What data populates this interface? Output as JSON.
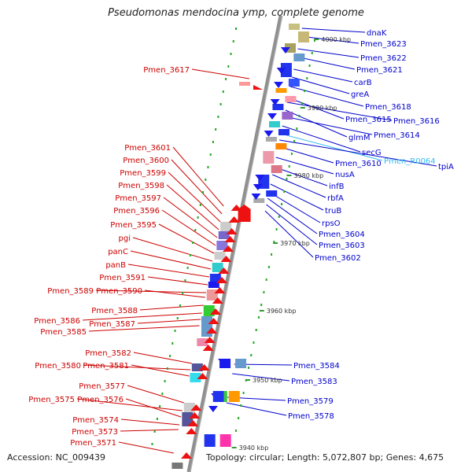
{
  "title": "Pseudomonas mendocina ymp, complete genome",
  "footer": {
    "accession": "Accession: NC_009439",
    "topology": "Topology: circular; Length: 5,072,807 bp; Genes: 4,675"
  },
  "colors": {
    "right_label": "#0000cc",
    "left_label": "#cc0000",
    "rna_label": "#33bbee",
    "backbone": "#909090",
    "scale_dot": "#22aa22"
  },
  "scale_ticks": [
    "4000 kbp",
    "3990 kbp",
    "3980 kbp",
    "3970 kbp",
    "3960 kbp",
    "3950 kbp",
    "3940 kbp"
  ],
  "right_labels": [
    "dnaK",
    "Pmen_3623",
    "Pmen_3622",
    "Pmen_3621",
    "carB",
    "greA",
    "Pmen_3618",
    "Pmen_3615",
    "Pmen_3616",
    "glmM",
    "Pmen_3614",
    "secG",
    "Pmen_R0064",
    "tpiA",
    "Pmen_3610",
    "nusA",
    "infB",
    "rbfA",
    "truB",
    "rpsO",
    "Pmen_3604",
    "Pmen_3603",
    "Pmen_3602",
    "Pmen_3584",
    "Pmen_3583",
    "Pmen_3579",
    "Pmen_3578"
  ],
  "left_labels": [
    "Pmen_3617",
    "Pmen_3601",
    "Pmen_3600",
    "Pmen_3599",
    "Pmen_3598",
    "Pmen_3597",
    "Pmen_3596",
    "Pmen_3595",
    "pgi",
    "panC",
    "panB",
    "Pmen_3591",
    "Pmen_3589",
    "Pmen_3590",
    "Pmen_3588",
    "Pmen_3586",
    "Pmen_3587",
    "Pmen_3585",
    "Pmen_3582",
    "Pmen_3580",
    "Pmen_3581",
    "Pmen_3577",
    "Pmen_3575",
    "Pmen_3576",
    "Pmen_3574",
    "Pmen_3573",
    "Pmen_3571"
  ]
}
